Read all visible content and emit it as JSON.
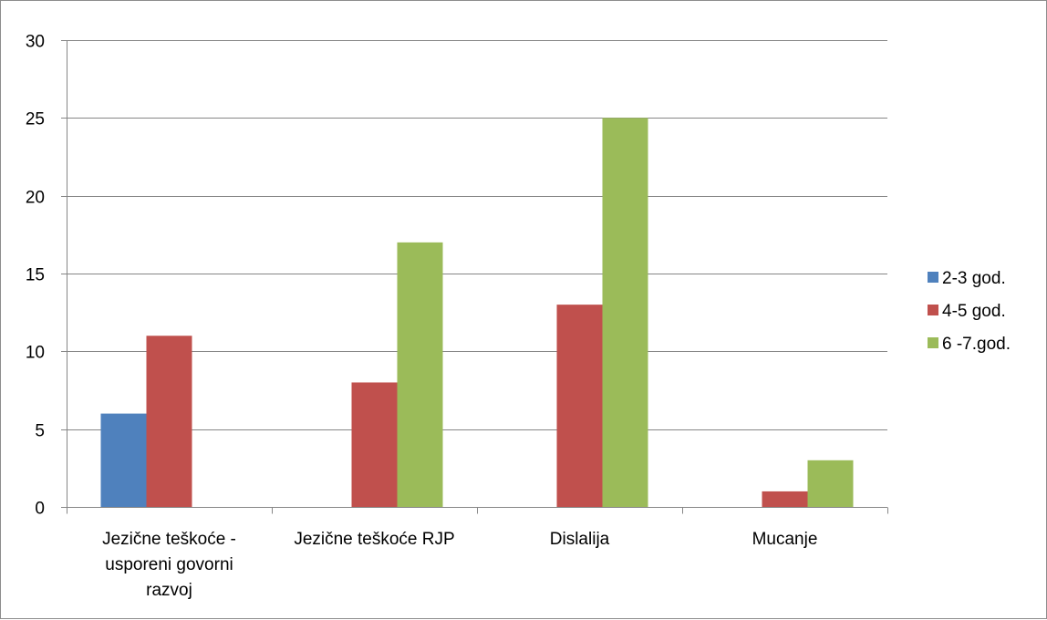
{
  "chart_data": {
    "type": "bar",
    "title": "",
    "xlabel": "",
    "ylabel": "",
    "categories": [
      [
        "Jezične teškoće -",
        "usporeni govorni",
        "razvoj"
      ],
      [
        "Jezične teškoće RJP"
      ],
      [
        "Dislalija"
      ],
      [
        "Mucanje"
      ]
    ],
    "series": [
      {
        "name": "2-3 god.",
        "color": "#4f81bd",
        "values": [
          6,
          0,
          0,
          0
        ]
      },
      {
        "name": "4-5 god.",
        "color": "#c0504d",
        "values": [
          11,
          8,
          13,
          1
        ]
      },
      {
        "name": "6 -7.god.",
        "color": "#9bbb59",
        "values": [
          0,
          17,
          25,
          3
        ]
      }
    ],
    "ylim": [
      0,
      30
    ],
    "yticks": [
      0,
      5,
      10,
      15,
      20,
      25,
      30
    ],
    "grid": true,
    "legend_position": "right"
  }
}
